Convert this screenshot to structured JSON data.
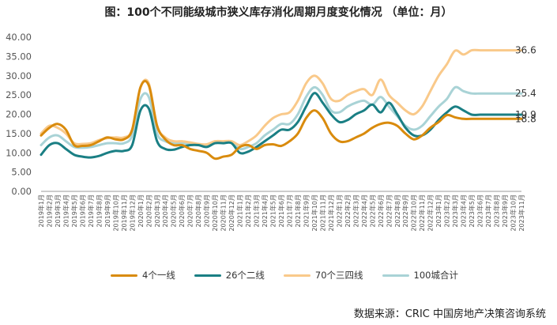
{
  "title": "图：100个不同能级城市狭义库存消化周期月度变化情况 （单位：月）",
  "source": "数据来源：CRIC 中国房地产决策咨询系统",
  "colors": {
    "line4": "#d98b0d",
    "line26": "#1a7f84",
    "line70": "#f9c98a",
    "line100": "#a9d3d6",
    "axis": "#999999"
  },
  "chart_data": {
    "type": "line",
    "title": "图：100个不同能级城市狭义库存消化周期月度变化情况 （单位：月）",
    "ylim": [
      0,
      40
    ],
    "yticks": [
      "0.00",
      "5.00",
      "10.00",
      "15.00",
      "20.00",
      "25.00",
      "30.00",
      "35.00",
      "40.00"
    ],
    "grid": false,
    "legend_position": "bottom",
    "x": [
      "2019年1月",
      "2019年2月",
      "2019年3月",
      "2019年4月",
      "2019年5月",
      "2019年6月",
      "2019年7月",
      "2019年8月",
      "2019年9月",
      "2019年10月",
      "2019年11月",
      "2019年12月",
      "2020年1月",
      "2020年2月",
      "2020年3月",
      "2020年4月",
      "2020年5月",
      "2020年6月",
      "2020年7月",
      "2020年8月",
      "2020年9月",
      "2020年10月",
      "2020年11月",
      "2020年12月",
      "2021年1月",
      "2021年2月",
      "2021年3月",
      "2021年4月",
      "2021年5月",
      "2021年6月",
      "2021年7月",
      "2021年8月",
      "2021年9月",
      "2021年10月",
      "2021年11月",
      "2021年12月",
      "2022年1月",
      "2022年2月",
      "2022年3月",
      "2022年4月",
      "2022年5月",
      "2022年6月",
      "2022年7月",
      "2022年8月",
      "2022年9月",
      "2022年10月",
      "2022年11月",
      "2022年12月",
      "2023年1月",
      "2023年2月",
      "2023年3月",
      "2023年4月",
      "2023年5月",
      "2023年6月",
      "2023年7月",
      "2023年8月",
      "2023年9月",
      "2023年10月",
      "2023年11月"
    ],
    "series": [
      {
        "name": "4个一线",
        "values": [
          14.5,
          16.5,
          17.5,
          16,
          12,
          11.8,
          12,
          13,
          14,
          13.5,
          13.5,
          16,
          27,
          27.5,
          17,
          13.5,
          12,
          12,
          11,
          10.5,
          10,
          8.5,
          9,
          9.5,
          11.5,
          12,
          11,
          12,
          12.2,
          11.8,
          13,
          15,
          19,
          21,
          19,
          15,
          13,
          13,
          14,
          15,
          16.5,
          17.5,
          17.8,
          17,
          15,
          13.5,
          14.5,
          16.5,
          18,
          19.8,
          19.2,
          18.8,
          18.8,
          18.8,
          18.8,
          18.8,
          18.8,
          18.8,
          18.8
        ]
      },
      {
        "name": "26个二线",
        "values": [
          9.5,
          12,
          12.5,
          11,
          9.5,
          9,
          8.8,
          9.2,
          10,
          10.5,
          10.5,
          12,
          21,
          21.5,
          13,
          11,
          10.8,
          11.5,
          12,
          12,
          11.5,
          12.5,
          12.5,
          12.5,
          10,
          10.3,
          11.5,
          13,
          14.5,
          16,
          16,
          18,
          22,
          25.5,
          23,
          20,
          18,
          18.5,
          20,
          21,
          22.5,
          20.5,
          23,
          20,
          16.5,
          14.5,
          14.5,
          16,
          18.5,
          20.5,
          22,
          21,
          19.9,
          19.9,
          19.9,
          19.9,
          19.9,
          19.9,
          19.9
        ]
      },
      {
        "name": "70个三四线",
        "values": [
          15,
          17,
          16.5,
          15,
          12.5,
          12.3,
          12.5,
          13.3,
          13.8,
          14,
          14,
          16,
          27,
          28,
          17,
          14,
          13,
          13,
          12.7,
          12.3,
          12.2,
          13,
          13,
          13,
          12,
          13,
          14.5,
          17,
          19,
          20,
          20.5,
          23.5,
          28,
          30,
          28,
          24,
          23.5,
          25,
          26,
          26.5,
          25,
          29,
          25,
          23,
          21,
          20,
          22,
          26,
          30,
          33,
          36.5,
          35.5,
          36.6,
          36.6,
          36.6,
          36.6,
          36.6,
          36.6,
          36.6
        ]
      },
      {
        "name": "100城合计",
        "values": [
          12,
          14,
          14.5,
          13,
          11.5,
          11.3,
          11.5,
          12,
          12.5,
          12.5,
          12.5,
          14.5,
          24,
          24.5,
          15,
          13,
          12.5,
          12.5,
          12.3,
          12,
          11.8,
          12.8,
          12.8,
          12.8,
          11,
          11.5,
          12.5,
          14.5,
          16,
          17.5,
          17.5,
          20,
          24.5,
          27,
          25,
          21,
          20.5,
          22,
          23,
          23.5,
          22.5,
          24.5,
          22,
          19.5,
          17,
          16,
          17,
          19.5,
          22,
          24,
          27,
          26,
          25.4,
          25.4,
          25.4,
          25.4,
          25.4,
          25.4,
          25.4
        ]
      }
    ],
    "end_labels": [
      {
        "series": "70个三四线",
        "value": 36.6,
        "label": "36.6"
      },
      {
        "series": "100城合计",
        "value": 25.4,
        "label": "25.4"
      },
      {
        "series": "26个二线",
        "value": 19.9,
        "label": "19.9"
      },
      {
        "series": "4个一线",
        "value": 18.8,
        "label": "18.8"
      }
    ]
  }
}
